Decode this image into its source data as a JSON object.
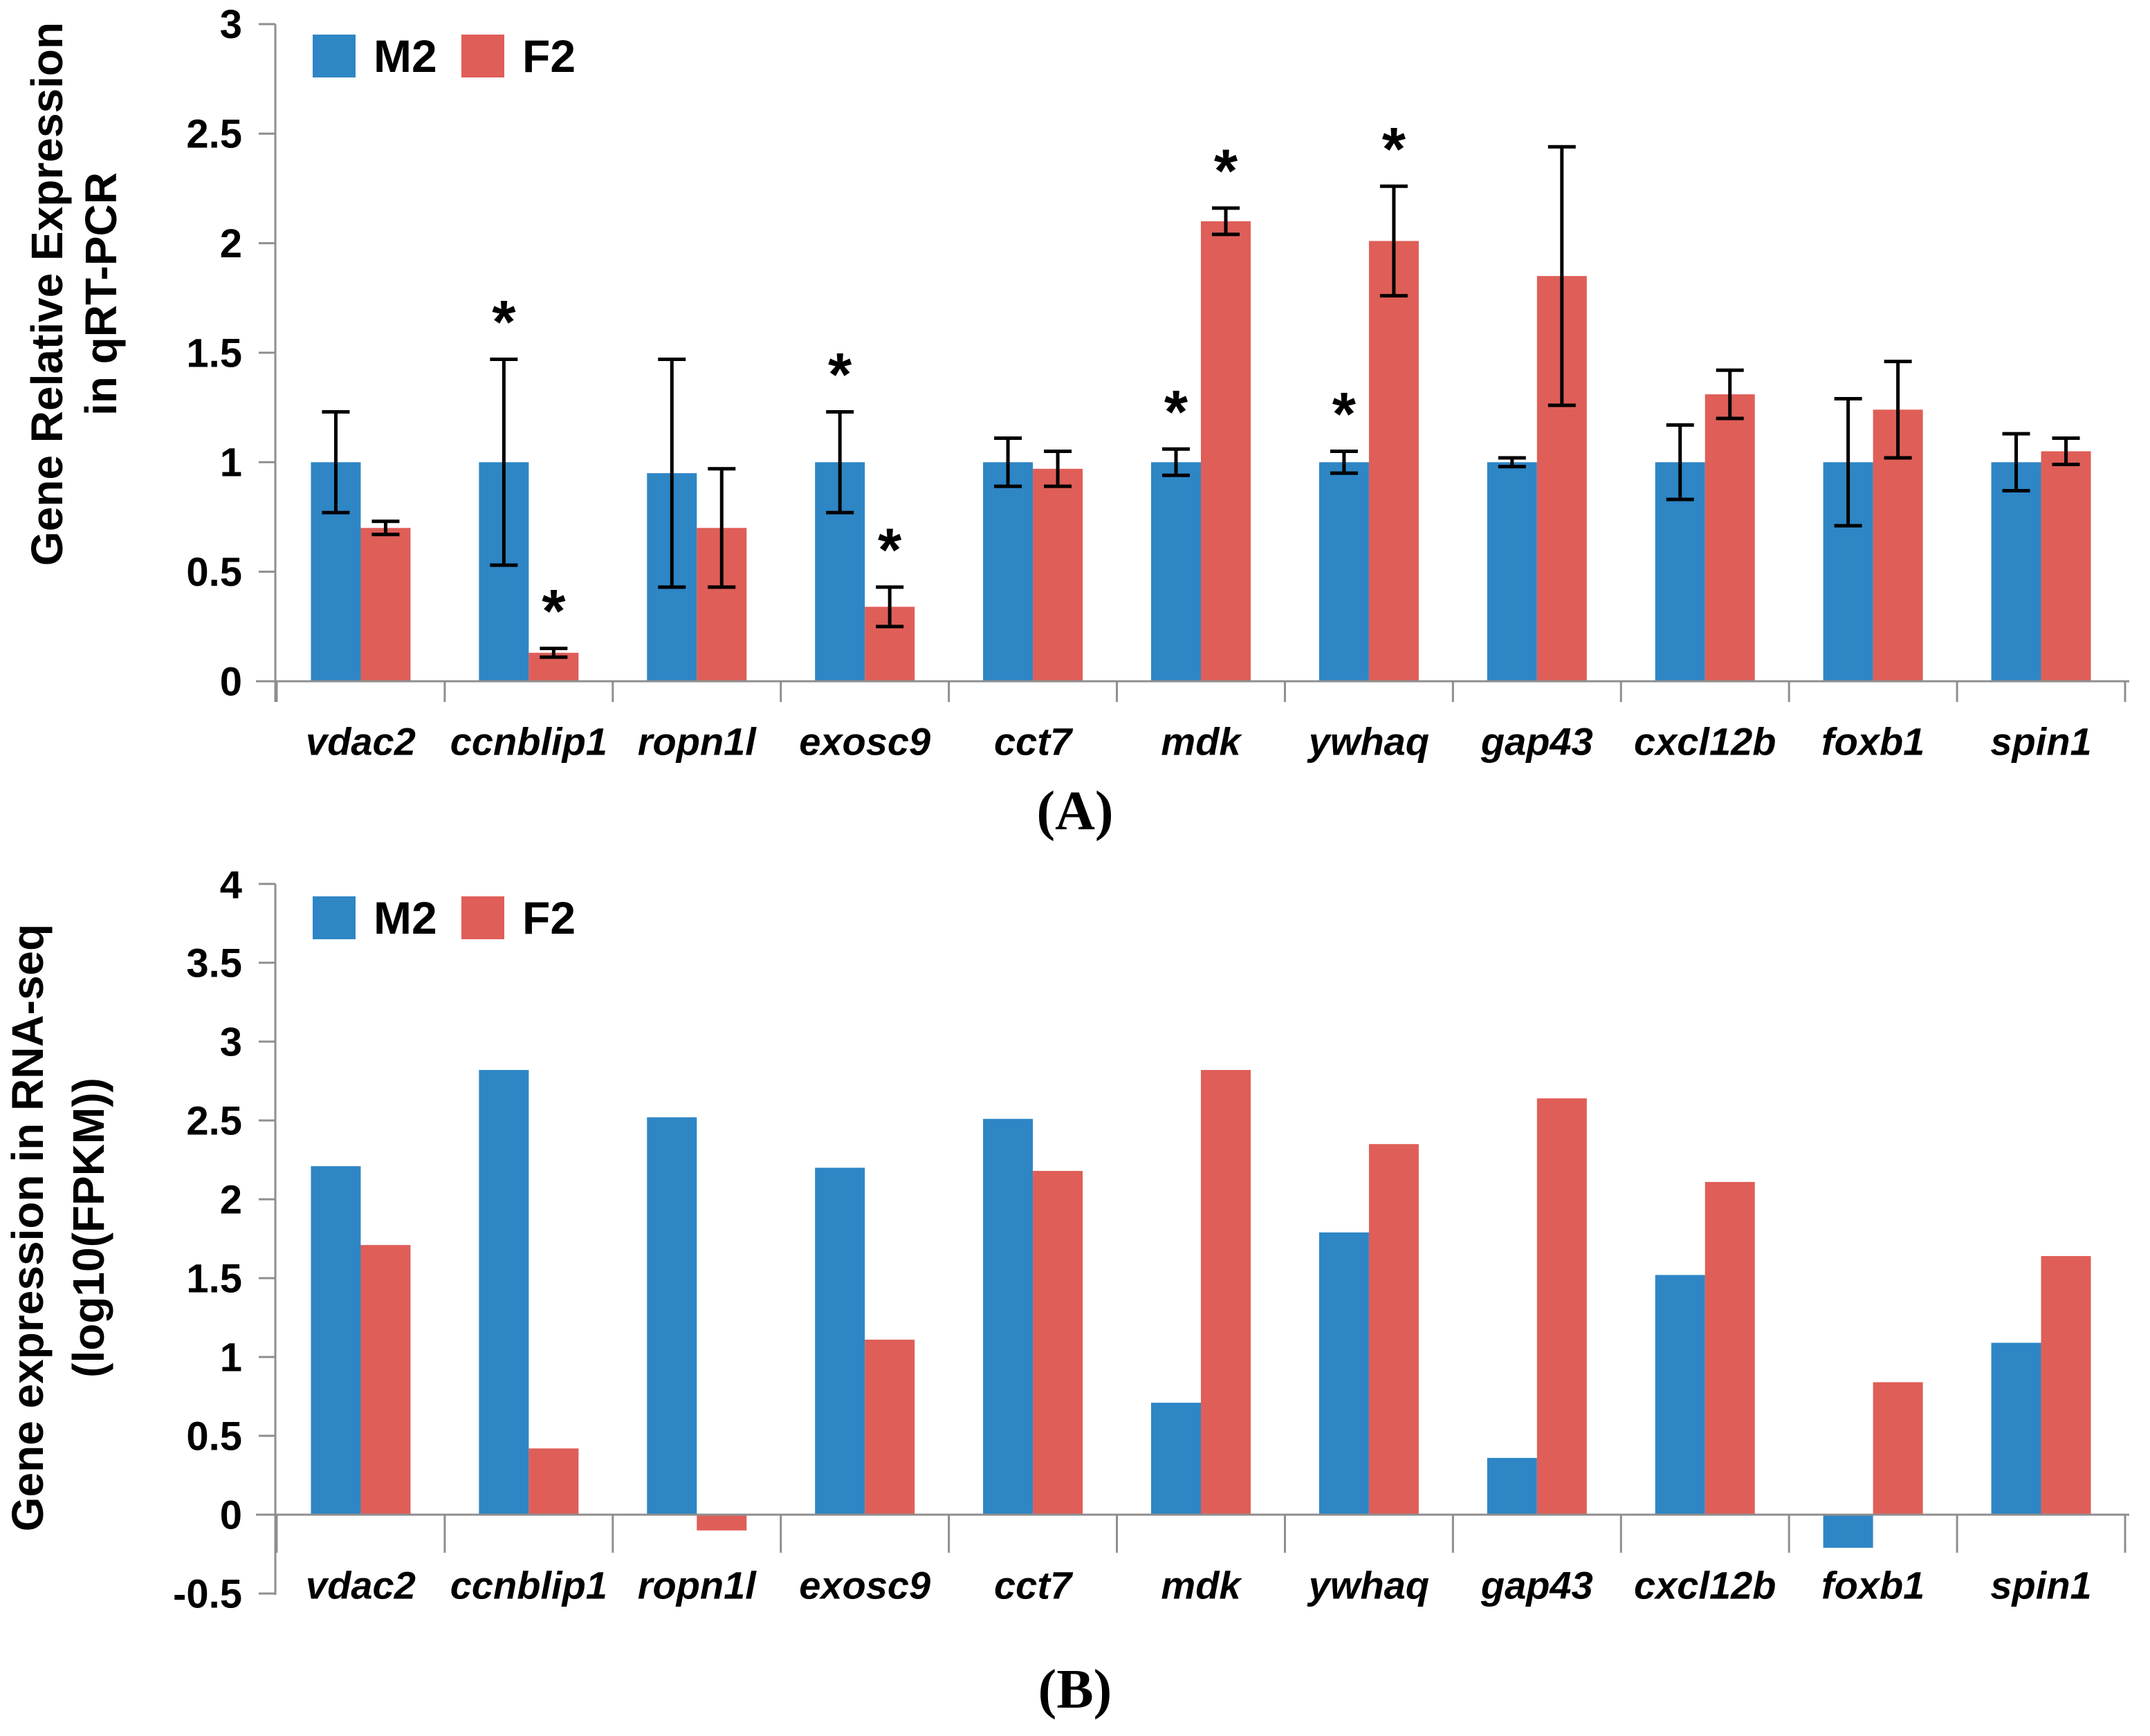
{
  "captions": {
    "a": "(A)",
    "b": "(B)"
  },
  "colors": {
    "m2": "#2E86C5",
    "f2": "#DF5E58",
    "axis": "#8E8E8E",
    "text": "#000000",
    "error_bar": "#000000"
  },
  "significance_marker": "*",
  "chart_data": [
    {
      "panel": "A",
      "type": "bar",
      "title": "",
      "xlabel": "",
      "ylabel_lines": [
        "Gene Relative Expression",
        "in qRT-PCR"
      ],
      "legend_entries": [
        "M2",
        "F2"
      ],
      "legend_position": "top-left-inside",
      "grid": false,
      "ylim": [
        0,
        3
      ],
      "yticks": [
        0,
        0.5,
        1,
        1.5,
        2,
        2.5,
        3
      ],
      "ytick_labels": [
        "0",
        "0.5",
        "1",
        "1.5",
        "2",
        "2.5",
        "3"
      ],
      "categories": [
        "vdac2",
        "ccnblip1",
        "ropn1l",
        "exosc9",
        "cct7",
        "mdk",
        "ywhaq",
        "gap43",
        "cxcl12b",
        "foxb1",
        "spin1"
      ],
      "series": [
        {
          "name": "M2",
          "color": "#2E86C5",
          "values": [
            1.0,
            1.0,
            0.95,
            1.0,
            1.0,
            1.0,
            1.0,
            1.0,
            1.0,
            1.0,
            1.0
          ],
          "errors": [
            0.23,
            0.47,
            0.52,
            0.23,
            0.11,
            0.06,
            0.05,
            0.02,
            0.17,
            0.29,
            0.13
          ],
          "significant": [
            false,
            true,
            false,
            true,
            false,
            true,
            true,
            false,
            false,
            false,
            false
          ]
        },
        {
          "name": "F2",
          "color": "#DF5E58",
          "values": [
            0.7,
            0.13,
            0.7,
            0.34,
            0.97,
            2.1,
            2.01,
            1.85,
            1.31,
            1.24,
            1.05
          ],
          "errors": [
            0.03,
            0.02,
            0.27,
            0.09,
            0.08,
            0.06,
            0.25,
            0.59,
            0.11,
            0.22,
            0.06
          ],
          "significant": [
            false,
            true,
            false,
            true,
            false,
            true,
            true,
            false,
            false,
            false,
            false
          ]
        }
      ]
    },
    {
      "panel": "B",
      "type": "bar",
      "title": "",
      "xlabel": "",
      "ylabel_lines": [
        "Gene expression in RNA-seq",
        "(log10(FPKM))"
      ],
      "legend_entries": [
        "M2",
        "F2"
      ],
      "legend_position": "top-left-inside",
      "grid": false,
      "ylim": [
        -0.5,
        4
      ],
      "yticks": [
        -0.5,
        0,
        0.5,
        1,
        1.5,
        2,
        2.5,
        3,
        3.5,
        4
      ],
      "ytick_labels": [
        "-0.5",
        "0",
        "0.5",
        "1",
        "1.5",
        "2",
        "2.5",
        "3",
        "3.5",
        "4"
      ],
      "categories": [
        "vdac2",
        "ccnblip1",
        "ropn1l",
        "exosc9",
        "cct7",
        "mdk",
        "ywhaq",
        "gap43",
        "cxcl12b",
        "foxb1",
        "spin1"
      ],
      "series": [
        {
          "name": "M2",
          "color": "#2E86C5",
          "values": [
            2.21,
            2.82,
            2.52,
            2.2,
            2.51,
            0.71,
            1.79,
            0.36,
            1.52,
            -0.21,
            1.09
          ],
          "errors": null,
          "significant": null
        },
        {
          "name": "F2",
          "color": "#DF5E58",
          "values": [
            1.71,
            0.42,
            -0.1,
            1.11,
            2.18,
            2.82,
            2.35,
            2.64,
            2.11,
            0.84,
            1.64
          ],
          "errors": null,
          "significant": null
        }
      ]
    }
  ]
}
